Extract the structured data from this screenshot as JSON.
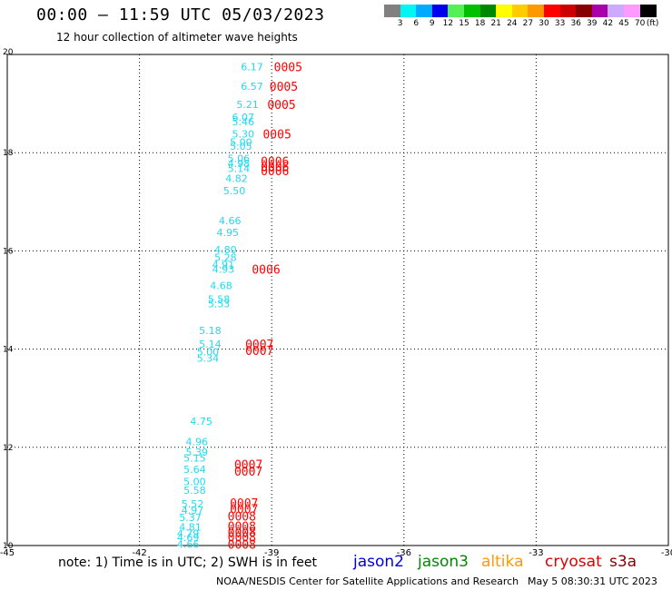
{
  "header": {
    "title": "00:00 – 11:59 UTC 05/03/2023",
    "subtitle": "12 hour collection of altimeter wave heights"
  },
  "legend": {
    "unit_label": "(ft)",
    "items": [
      {
        "label": "3",
        "color": "#808080"
      },
      {
        "label": "6",
        "color": "#00f5f5"
      },
      {
        "label": "9",
        "color": "#00aaff"
      },
      {
        "label": "12",
        "color": "#0000ee"
      },
      {
        "label": "15",
        "color": "#55f055"
      },
      {
        "label": "18",
        "color": "#00c000"
      },
      {
        "label": "21",
        "color": "#008800"
      },
      {
        "label": "24",
        "color": "#ffff00"
      },
      {
        "label": "27",
        "color": "#ffcc00"
      },
      {
        "label": "30",
        "color": "#ff9900"
      },
      {
        "label": "33",
        "color": "#ff0000"
      },
      {
        "label": "36",
        "color": "#cc0000"
      },
      {
        "label": "39",
        "color": "#880000"
      },
      {
        "label": "42",
        "color": "#aa00aa"
      },
      {
        "label": "45",
        "color": "#ccaaff"
      },
      {
        "label": "70",
        "color": "#ff99ff"
      },
      {
        "label": "",
        "color": "#000000"
      }
    ]
  },
  "footer": {
    "note": "note: 1) Time is in UTC; 2) SWH is in feet",
    "satellites": [
      {
        "name": "jason2",
        "color": "#0000dd"
      },
      {
        "name": "jason3",
        "color": "#008800"
      },
      {
        "name": "altika",
        "color": "#ff9900"
      },
      {
        "name": "cryosat",
        "color": "#dd0000"
      },
      {
        "name": "s3a",
        "color": "#880000"
      }
    ],
    "credit": "NOAA/NESDIS Center for Satellite Applications and Research",
    "timestamp": "May  5 08:30:31 UTC 2023"
  },
  "chart_data": {
    "type": "scatter",
    "title": "00:00 – 11:59 UTC 05/03/2023",
    "subtitle": "12 hour collection of altimeter wave heights",
    "xlabel": "",
    "ylabel": "",
    "xlim": [
      -45,
      -30
    ],
    "ylim": [
      10,
      20
    ],
    "x_ticks": [
      "-45",
      "-42",
      "-39",
      "-36",
      "-33",
      "-30"
    ],
    "y_ticks": [
      "10",
      "12",
      "14",
      "16",
      "18",
      "20"
    ],
    "grid": true,
    "swh_color": "#22d8ee",
    "time_color": "#ff0000",
    "swh_labels": [
      {
        "x": -39.7,
        "y": 19.75,
        "text": "6.17"
      },
      {
        "x": -39.7,
        "y": 19.35,
        "text": "6.57"
      },
      {
        "x": -39.8,
        "y": 18.98,
        "text": "5.21"
      },
      {
        "x": -39.9,
        "y": 18.72,
        "text": "6.07"
      },
      {
        "x": -39.9,
        "y": 18.63,
        "text": "5.46"
      },
      {
        "x": -39.9,
        "y": 18.38,
        "text": "5.30"
      },
      {
        "x": -39.95,
        "y": 18.22,
        "text": "5.00"
      },
      {
        "x": -39.95,
        "y": 18.13,
        "text": "5.05"
      },
      {
        "x": -40.0,
        "y": 17.88,
        "text": "5.06"
      },
      {
        "x": -40.0,
        "y": 17.78,
        "text": "4.98"
      },
      {
        "x": -40.0,
        "y": 17.68,
        "text": "5.14"
      },
      {
        "x": -40.05,
        "y": 17.48,
        "text": "4.82"
      },
      {
        "x": -40.1,
        "y": 17.23,
        "text": "5.50"
      },
      {
        "x": -40.2,
        "y": 16.62,
        "text": "4.66"
      },
      {
        "x": -40.25,
        "y": 16.38,
        "text": "4.95"
      },
      {
        "x": -40.3,
        "y": 16.03,
        "text": "4.80"
      },
      {
        "x": -40.3,
        "y": 15.87,
        "text": "5.28"
      },
      {
        "x": -40.35,
        "y": 15.72,
        "text": "4.91"
      },
      {
        "x": -40.35,
        "y": 15.63,
        "text": "4.93"
      },
      {
        "x": -40.4,
        "y": 15.3,
        "text": "4.68"
      },
      {
        "x": -40.45,
        "y": 15.02,
        "text": "5.58"
      },
      {
        "x": -40.45,
        "y": 14.93,
        "text": "5.53"
      },
      {
        "x": -40.65,
        "y": 14.38,
        "text": "5.18"
      },
      {
        "x": -40.65,
        "y": 14.1,
        "text": "5.14"
      },
      {
        "x": -40.7,
        "y": 13.95,
        "text": "5.00"
      },
      {
        "x": -40.7,
        "y": 13.82,
        "text": "5.34"
      },
      {
        "x": -40.85,
        "y": 12.53,
        "text": "4.75"
      },
      {
        "x": -40.95,
        "y": 12.12,
        "text": "4.96"
      },
      {
        "x": -40.95,
        "y": 11.9,
        "text": "5.39"
      },
      {
        "x": -41.0,
        "y": 11.78,
        "text": "5.15"
      },
      {
        "x": -41.0,
        "y": 11.55,
        "text": "5.64"
      },
      {
        "x": -41.0,
        "y": 11.3,
        "text": "5.00"
      },
      {
        "x": -41.0,
        "y": 11.13,
        "text": "5.58"
      },
      {
        "x": -41.05,
        "y": 10.85,
        "text": "5.52"
      },
      {
        "x": -41.05,
        "y": 10.72,
        "text": "4.97"
      },
      {
        "x": -41.1,
        "y": 10.57,
        "text": "5.37"
      },
      {
        "x": -41.1,
        "y": 10.38,
        "text": "4.81"
      },
      {
        "x": -41.15,
        "y": 10.25,
        "text": "4.79"
      },
      {
        "x": -41.15,
        "y": 10.17,
        "text": "4.69"
      },
      {
        "x": -41.15,
        "y": 10.03,
        "text": "4.66"
      }
    ],
    "time_labels": [
      {
        "x": -38.95,
        "y": 19.75,
        "text": "0005"
      },
      {
        "x": -39.05,
        "y": 19.35,
        "text": "0005"
      },
      {
        "x": -39.1,
        "y": 18.98,
        "text": "0005"
      },
      {
        "x": -39.2,
        "y": 18.38,
        "text": "0005"
      },
      {
        "x": -39.25,
        "y": 17.83,
        "text": "0006"
      },
      {
        "x": -39.25,
        "y": 17.72,
        "text": "0006"
      },
      {
        "x": -39.25,
        "y": 17.63,
        "text": "0006"
      },
      {
        "x": -39.45,
        "y": 15.63,
        "text": "0006"
      },
      {
        "x": -39.6,
        "y": 14.1,
        "text": "0007"
      },
      {
        "x": -39.6,
        "y": 13.97,
        "text": "0007"
      },
      {
        "x": -39.85,
        "y": 11.65,
        "text": "0007"
      },
      {
        "x": -39.85,
        "y": 11.52,
        "text": "0007"
      },
      {
        "x": -39.95,
        "y": 10.87,
        "text": "0007"
      },
      {
        "x": -39.95,
        "y": 10.75,
        "text": "0007"
      },
      {
        "x": -40.0,
        "y": 10.6,
        "text": "0008"
      },
      {
        "x": -40.0,
        "y": 10.4,
        "text": "0008"
      },
      {
        "x": -40.0,
        "y": 10.28,
        "text": "0008"
      },
      {
        "x": -40.0,
        "y": 10.18,
        "text": "0008"
      },
      {
        "x": -40.0,
        "y": 10.03,
        "text": "0008"
      }
    ]
  }
}
